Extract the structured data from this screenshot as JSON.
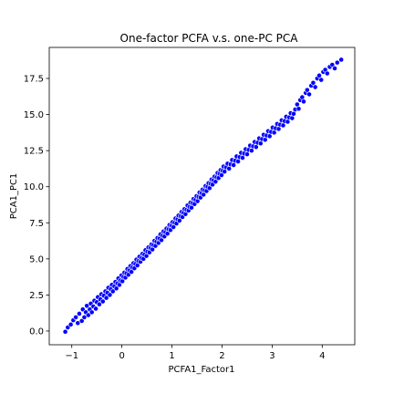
{
  "chart_data": {
    "type": "scatter",
    "title": "One-factor PCFA v.s. one-PC PCA",
    "xlabel": "PCFA1_Factor1",
    "ylabel": "PCA1_PC1",
    "xlim": [
      -1.45,
      4.65
    ],
    "ylim": [
      -0.95,
      19.65
    ],
    "xticks": [
      -1,
      0,
      1,
      2,
      3,
      4
    ],
    "xtick_labels": [
      "−1",
      "0",
      "1",
      "2",
      "3",
      "4"
    ],
    "yticks": [
      0.0,
      2.5,
      5.0,
      7.5,
      10.0,
      12.5,
      15.0,
      17.5
    ],
    "ytick_labels": [
      "0.0",
      "2.5",
      "5.0",
      "7.5",
      "10.0",
      "12.5",
      "15.0",
      "17.5"
    ],
    "grid": false,
    "marker_color": "#0000ff",
    "marker_edge_color": "#ffffff",
    "trend": {
      "slope": 4.2,
      "intercept": 4.0,
      "x_range": [
        -1.13,
        4.38
      ]
    },
    "series": [
      {
        "points": [
          [
            -1.13,
            -0.05
          ],
          [
            -1.08,
            0.25
          ],
          [
            -1.02,
            0.45
          ],
          [
            -0.97,
            0.75
          ],
          [
            -0.92,
            0.95
          ],
          [
            -0.88,
            0.55
          ],
          [
            -0.85,
            1.2
          ],
          [
            -0.8,
            0.7
          ],
          [
            -0.78,
            1.5
          ],
          [
            -0.75,
            0.95
          ],
          [
            -0.72,
            1.3
          ],
          [
            -0.7,
            1.75
          ],
          [
            -0.67,
            1.1
          ],
          [
            -0.64,
            1.5
          ],
          [
            -0.62,
            1.9
          ],
          [
            -0.6,
            1.3
          ],
          [
            -0.57,
            1.7
          ],
          [
            -0.55,
            2.1
          ],
          [
            -0.52,
            1.55
          ],
          [
            -0.5,
            2.0
          ],
          [
            -0.48,
            2.35
          ],
          [
            -0.45,
            1.85
          ],
          [
            -0.43,
            2.2
          ],
          [
            -0.41,
            2.55
          ],
          [
            -0.38,
            2.05
          ],
          [
            -0.36,
            2.45
          ],
          [
            -0.33,
            2.75
          ],
          [
            -0.31,
            2.3
          ],
          [
            -0.29,
            2.65
          ],
          [
            -0.27,
            3.0
          ],
          [
            -0.24,
            2.5
          ],
          [
            -0.22,
            2.9
          ],
          [
            -0.2,
            3.2
          ],
          [
            -0.18,
            2.75
          ],
          [
            -0.15,
            3.1
          ],
          [
            -0.13,
            3.4
          ],
          [
            -0.11,
            2.95
          ],
          [
            -0.09,
            3.3
          ],
          [
            -0.07,
            3.65
          ],
          [
            -0.05,
            3.2
          ],
          [
            -0.03,
            3.5
          ],
          [
            -0.01,
            3.85
          ],
          [
            0.01,
            3.45
          ],
          [
            0.03,
            3.75
          ],
          [
            0.05,
            4.05
          ],
          [
            0.07,
            3.7
          ],
          [
            0.09,
            4.0
          ],
          [
            0.11,
            4.3
          ],
          [
            0.13,
            3.9
          ],
          [
            0.15,
            4.2
          ],
          [
            0.17,
            4.5
          ],
          [
            0.19,
            4.1
          ],
          [
            0.21,
            4.4
          ],
          [
            0.23,
            4.7
          ],
          [
            0.25,
            4.35
          ],
          [
            0.27,
            4.65
          ],
          [
            0.29,
            4.95
          ],
          [
            0.31,
            4.55
          ],
          [
            0.33,
            4.85
          ],
          [
            0.35,
            5.15
          ],
          [
            0.37,
            4.8
          ],
          [
            0.39,
            5.05
          ],
          [
            0.41,
            5.35
          ],
          [
            0.43,
            5.0
          ],
          [
            0.45,
            5.3
          ],
          [
            0.47,
            5.6
          ],
          [
            0.49,
            5.2
          ],
          [
            0.51,
            5.5
          ],
          [
            0.53,
            5.8
          ],
          [
            0.55,
            5.45
          ],
          [
            0.57,
            5.75
          ],
          [
            0.59,
            6.0
          ],
          [
            0.61,
            5.65
          ],
          [
            0.63,
            5.95
          ],
          [
            0.65,
            6.25
          ],
          [
            0.67,
            5.9
          ],
          [
            0.69,
            6.2
          ],
          [
            0.71,
            6.45
          ],
          [
            0.73,
            6.1
          ],
          [
            0.75,
            6.4
          ],
          [
            0.77,
            6.7
          ],
          [
            0.79,
            6.3
          ],
          [
            0.81,
            6.6
          ],
          [
            0.83,
            6.9
          ],
          [
            0.85,
            6.55
          ],
          [
            0.87,
            6.85
          ],
          [
            0.89,
            7.1
          ],
          [
            0.91,
            6.75
          ],
          [
            0.93,
            7.05
          ],
          [
            0.95,
            7.35
          ],
          [
            0.97,
            7.0
          ],
          [
            0.99,
            7.3
          ],
          [
            1.01,
            7.55
          ],
          [
            1.03,
            7.2
          ],
          [
            1.05,
            7.5
          ],
          [
            1.07,
            7.8
          ],
          [
            1.09,
            7.45
          ],
          [
            1.11,
            7.75
          ],
          [
            1.13,
            8.0
          ],
          [
            1.15,
            7.65
          ],
          [
            1.17,
            7.95
          ],
          [
            1.19,
            8.25
          ],
          [
            1.21,
            7.9
          ],
          [
            1.23,
            8.2
          ],
          [
            1.25,
            8.45
          ],
          [
            1.27,
            8.1
          ],
          [
            1.29,
            8.4
          ],
          [
            1.31,
            8.7
          ],
          [
            1.33,
            8.35
          ],
          [
            1.35,
            8.6
          ],
          [
            1.37,
            8.9
          ],
          [
            1.39,
            8.55
          ],
          [
            1.41,
            8.85
          ],
          [
            1.43,
            9.15
          ],
          [
            1.45,
            8.8
          ],
          [
            1.47,
            9.1
          ],
          [
            1.49,
            9.35
          ],
          [
            1.51,
            9.0
          ],
          [
            1.53,
            9.3
          ],
          [
            1.55,
            9.6
          ],
          [
            1.57,
            9.25
          ],
          [
            1.59,
            9.55
          ],
          [
            1.61,
            9.8
          ],
          [
            1.63,
            9.45
          ],
          [
            1.65,
            9.75
          ],
          [
            1.67,
            10.05
          ],
          [
            1.69,
            9.7
          ],
          [
            1.71,
            10.0
          ],
          [
            1.73,
            10.25
          ],
          [
            1.75,
            9.9
          ],
          [
            1.77,
            10.2
          ],
          [
            1.79,
            10.5
          ],
          [
            1.81,
            10.15
          ],
          [
            1.83,
            10.45
          ],
          [
            1.85,
            10.7
          ],
          [
            1.87,
            10.35
          ],
          [
            1.89,
            10.65
          ],
          [
            1.91,
            10.95
          ],
          [
            1.93,
            10.6
          ],
          [
            1.95,
            10.9
          ],
          [
            1.97,
            11.15
          ],
          [
            1.99,
            10.8
          ],
          [
            2.01,
            11.1
          ],
          [
            2.03,
            11.4
          ],
          [
            2.05,
            11.05
          ],
          [
            2.08,
            11.35
          ],
          [
            2.11,
            11.6
          ],
          [
            2.14,
            11.25
          ],
          [
            2.17,
            11.55
          ],
          [
            2.2,
            11.85
          ],
          [
            2.23,
            11.5
          ],
          [
            2.26,
            11.8
          ],
          [
            2.29,
            12.1
          ],
          [
            2.32,
            11.75
          ],
          [
            2.35,
            12.05
          ],
          [
            2.38,
            12.35
          ],
          [
            2.41,
            12.0
          ],
          [
            2.44,
            12.3
          ],
          [
            2.47,
            12.6
          ],
          [
            2.5,
            12.25
          ],
          [
            2.53,
            12.55
          ],
          [
            2.56,
            12.85
          ],
          [
            2.59,
            12.5
          ],
          [
            2.62,
            12.8
          ],
          [
            2.65,
            13.1
          ],
          [
            2.68,
            12.75
          ],
          [
            2.71,
            13.05
          ],
          [
            2.74,
            13.35
          ],
          [
            2.77,
            13.0
          ],
          [
            2.8,
            13.3
          ],
          [
            2.83,
            13.6
          ],
          [
            2.86,
            13.25
          ],
          [
            2.89,
            13.55
          ],
          [
            2.92,
            13.85
          ],
          [
            2.95,
            13.5
          ],
          [
            2.98,
            13.8
          ],
          [
            3.01,
            14.1
          ],
          [
            3.04,
            13.75
          ],
          [
            3.07,
            14.05
          ],
          [
            3.1,
            14.35
          ],
          [
            3.13,
            14.0
          ],
          [
            3.16,
            14.3
          ],
          [
            3.19,
            14.6
          ],
          [
            3.22,
            14.25
          ],
          [
            3.25,
            14.55
          ],
          [
            3.28,
            14.85
          ],
          [
            3.31,
            14.5
          ],
          [
            3.34,
            14.8
          ],
          [
            3.37,
            15.1
          ],
          [
            3.4,
            14.75
          ],
          [
            3.43,
            15.05
          ],
          [
            3.46,
            15.35
          ],
          [
            3.5,
            15.7
          ],
          [
            3.53,
            15.4
          ],
          [
            3.56,
            16.0
          ],
          [
            3.6,
            16.2
          ],
          [
            3.63,
            15.9
          ],
          [
            3.67,
            16.5
          ],
          [
            3.7,
            16.7
          ],
          [
            3.74,
            16.4
          ],
          [
            3.78,
            17.0
          ],
          [
            3.82,
            17.2
          ],
          [
            3.86,
            16.9
          ],
          [
            3.9,
            17.5
          ],
          [
            3.94,
            17.7
          ],
          [
            3.98,
            17.4
          ],
          [
            4.02,
            17.95
          ],
          [
            4.06,
            18.1
          ],
          [
            4.1,
            17.85
          ],
          [
            4.15,
            18.3
          ],
          [
            4.2,
            18.45
          ],
          [
            4.25,
            18.2
          ],
          [
            4.3,
            18.6
          ],
          [
            4.38,
            18.8
          ]
        ]
      }
    ]
  }
}
